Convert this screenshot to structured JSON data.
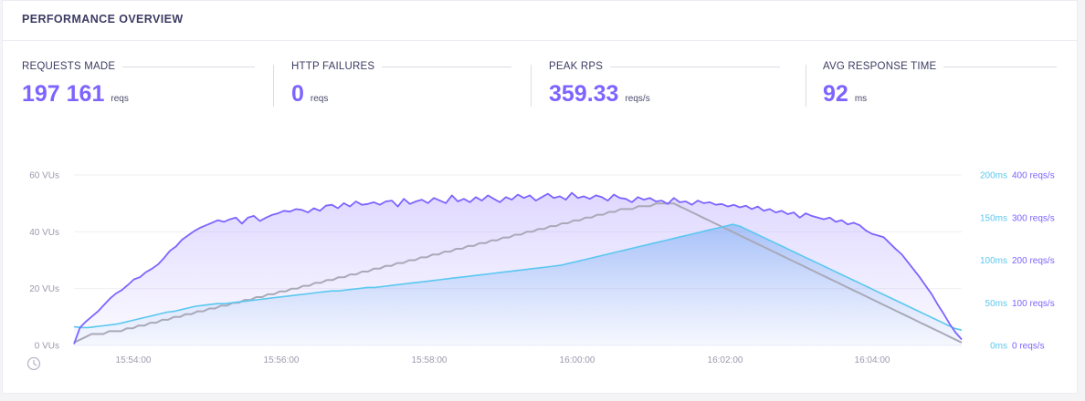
{
  "header": {
    "title": "PERFORMANCE OVERVIEW"
  },
  "stats": [
    {
      "label": "REQUESTS MADE",
      "value": "197 161",
      "unit": "reqs"
    },
    {
      "label": "HTTP FAILURES",
      "value": "0",
      "unit": "reqs"
    },
    {
      "label": "PEAK RPS",
      "value": "359.33",
      "unit": "reqs/s"
    },
    {
      "label": "AVG RESPONSE TIME",
      "value": "92",
      "unit": "ms"
    }
  ],
  "colors": {
    "vus": "#a9a9b8",
    "rps": "#7d64ff",
    "response_time": "#5ac8f0",
    "stat_value": "#7d64ff"
  },
  "chart_data": {
    "type": "line",
    "x_ticks": [
      "15:54:00",
      "15:56:00",
      "15:58:00",
      "16:00:00",
      "16:02:00",
      "16:04:00"
    ],
    "axes": {
      "vus": {
        "ticks": [
          "0 VUs",
          "20 VUs",
          "40 VUs",
          "60 VUs"
        ],
        "range": [
          0,
          60
        ]
      },
      "response_time": {
        "ticks": [
          "0ms",
          "50ms",
          "100ms",
          "150ms",
          "200ms"
        ],
        "range": [
          0,
          200
        ]
      },
      "rps": {
        "ticks": [
          "0 reqs/s",
          "100 reqs/s",
          "200 reqs/s",
          "300 reqs/s",
          "400 reqs/s"
        ],
        "range": [
          0,
          400
        ]
      }
    },
    "grid": true,
    "series": {
      "vus": [
        1,
        2,
        3,
        4,
        4,
        4,
        5,
        5,
        5,
        6,
        6,
        7,
        7,
        8,
        8,
        9,
        9,
        10,
        10,
        11,
        11,
        12,
        12,
        13,
        13,
        14,
        14,
        15,
        15,
        16,
        16,
        17,
        17,
        18,
        18,
        19,
        19,
        20,
        20,
        21,
        21,
        22,
        22,
        23,
        23,
        24,
        24,
        25,
        25,
        26,
        26,
        27,
        27,
        28,
        28,
        29,
        29,
        30,
        30,
        31,
        31,
        32,
        32,
        33,
        33,
        34,
        34,
        35,
        35,
        36,
        36,
        37,
        37,
        38,
        38,
        39,
        39,
        40,
        40,
        41,
        41,
        42,
        42,
        43,
        43,
        44,
        44,
        45,
        45,
        46,
        46,
        47,
        47,
        48,
        48,
        48,
        49,
        49,
        49,
        50,
        50,
        50,
        50,
        49,
        48,
        47,
        46,
        45,
        44,
        43,
        42,
        41,
        40,
        39,
        38,
        37,
        36,
        35,
        34,
        33,
        32,
        31,
        30,
        29,
        28,
        27,
        26,
        25,
        24,
        23,
        22,
        21,
        20,
        19,
        18,
        17,
        16,
        15,
        14,
        13,
        12,
        11,
        10,
        9,
        8,
        7,
        6,
        5,
        4,
        3,
        2,
        1
      ],
      "rps": [
        3,
        42,
        56,
        68,
        80,
        95,
        110,
        122,
        130,
        142,
        155,
        160,
        172,
        180,
        190,
        205,
        222,
        232,
        248,
        258,
        268,
        276,
        282,
        288,
        294,
        290,
        296,
        300,
        286,
        300,
        304,
        292,
        300,
        306,
        310,
        316,
        314,
        320,
        318,
        312,
        322,
        316,
        328,
        330,
        322,
        334,
        326,
        338,
        330,
        332,
        336,
        330,
        338,
        340,
        326,
        344,
        332,
        338,
        342,
        334,
        346,
        340,
        334,
        352,
        338,
        344,
        336,
        348,
        340,
        352,
        344,
        336,
        348,
        342,
        354,
        346,
        352,
        340,
        348,
        356,
        346,
        350,
        342,
        358,
        346,
        350,
        344,
        352,
        348,
        340,
        354,
        346,
        344,
        336,
        348,
        342,
        346,
        338,
        340,
        332,
        346,
        336,
        338,
        330,
        340,
        334,
        336,
        330,
        332,
        326,
        330,
        324,
        328,
        320,
        326,
        316,
        320,
        312,
        316,
        308,
        312,
        300,
        310,
        304,
        300,
        296,
        300,
        290,
        294,
        284,
        288,
        282,
        270,
        262,
        258,
        254,
        240,
        226,
        214,
        196,
        178,
        160,
        140,
        120,
        96,
        74,
        50,
        30,
        14
      ],
      "response_time": [
        22,
        21,
        21,
        22,
        23,
        24,
        25,
        27,
        29,
        31,
        33,
        35,
        37,
        39,
        40,
        42,
        44,
        46,
        47,
        48,
        49,
        49,
        50,
        51,
        52,
        53,
        54,
        55,
        56,
        57,
        58,
        59,
        60,
        61,
        62,
        63,
        64,
        64,
        65,
        66,
        67,
        68,
        68,
        69,
        70,
        71,
        72,
        73,
        74,
        75,
        76,
        77,
        78,
        79,
        80,
        81,
        82,
        83,
        84,
        85,
        86,
        87,
        88,
        89,
        90,
        91,
        92,
        93,
        94,
        96,
        98,
        100,
        102,
        104,
        106,
        108,
        110,
        112,
        114,
        116,
        118,
        120,
        122,
        124,
        126,
        128,
        130,
        132,
        134,
        136,
        138,
        140,
        142,
        140,
        136,
        132,
        128,
        124,
        120,
        116,
        112,
        108,
        104,
        100,
        96,
        92,
        88,
        84,
        80,
        76,
        72,
        68,
        64,
        60,
        56,
        52,
        48,
        44,
        40,
        36,
        32,
        28,
        24,
        20,
        18
      ]
    }
  }
}
